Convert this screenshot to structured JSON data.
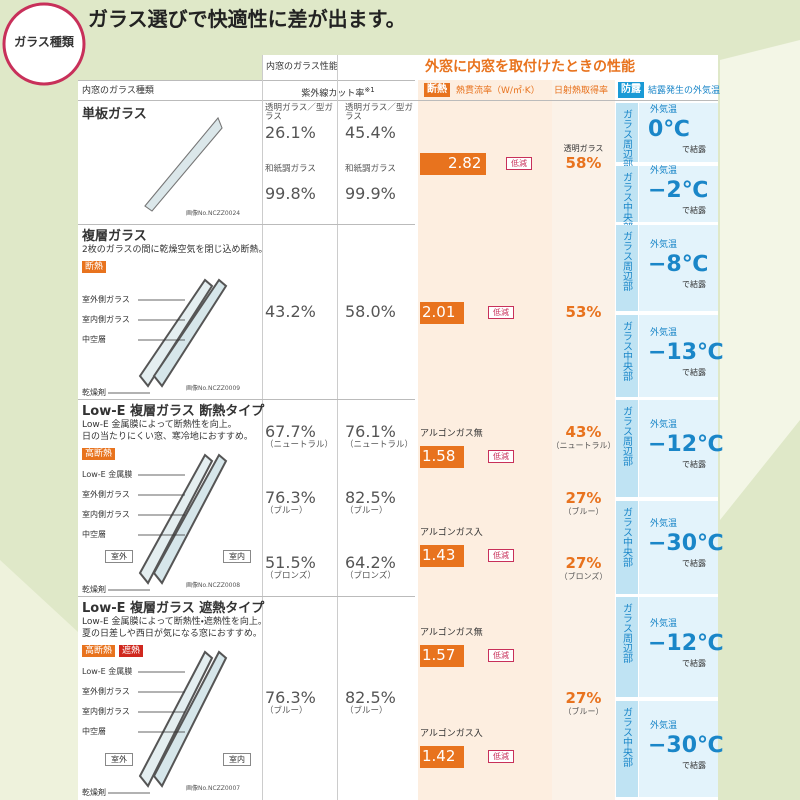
{
  "header": {
    "badge": "ガラス種類",
    "title": "ガラス選びで快適性に差が出ます。"
  },
  "table": {
    "head": {
      "type": "内窓のガラス種類",
      "performance": "内窓のガラス性能",
      "uv": "紫外線カット率",
      "uv_note": "※1",
      "outer": "外窓に内窓を取付けたときの性能",
      "insulation_badge": "断熱",
      "u_value": "熱貫流率（W/㎡·K）",
      "shgc": "日射熱取得率",
      "dew_badge": "防露",
      "dew": "結露発生の外気温"
    },
    "rows": [
      {
        "name": "単板ガラス",
        "desc": [],
        "tags": [],
        "parts": [],
        "sides": [],
        "image_no": "画像No.NCZZ0024",
        "uv": [
          [
            {
              "caption": "透明ガラス／型ガラス",
              "value": "26.1%"
            },
            {
              "caption": "透明ガラス／型ガラス",
              "value": "45.4%"
            }
          ],
          [
            {
              "caption": "和紙調ガラス",
              "value": "99.8%"
            },
            {
              "caption": "和紙調ガラス",
              "value": "99.9%"
            }
          ]
        ],
        "heat": [
          {
            "value": "2.82",
            "label": "低減"
          }
        ],
        "shgc": [
          {
            "caption": "透明ガラス",
            "value": "58%"
          }
        ],
        "dew": [
          {
            "part": "ガラス周辺部",
            "label": "外気温",
            "temp": "0℃",
            "suffix": "で結露"
          },
          {
            "part": "ガラス中央部",
            "label": "外気温",
            "temp": "−2℃",
            "suffix": "で結露"
          }
        ]
      },
      {
        "name": "複層ガラス",
        "desc": [
          "2枚のガラスの間に乾燥空気を閉じ込め断熱。"
        ],
        "tags": [
          "断熱"
        ],
        "parts": [
          "室外側ガラス",
          "室内側ガラス",
          "中空層",
          "乾燥剤"
        ],
        "sides": [],
        "image_no": "画像No.NCZZ0009",
        "uv": [
          [
            {
              "value": "43.2%"
            },
            {
              "value": "58.0%"
            }
          ]
        ],
        "heat": [
          {
            "value": "2.01",
            "label": "低減"
          }
        ],
        "shgc": [
          {
            "value": "53%"
          }
        ],
        "dew": [
          {
            "part": "ガラス周辺部",
            "label": "外気温",
            "temp": "−8℃",
            "suffix": "で結露"
          },
          {
            "part": "ガラス中央部",
            "label": "外気温",
            "temp": "−13℃",
            "suffix": "で結露"
          }
        ]
      },
      {
        "name": "Low-E 複層ガラス 断熱タイプ",
        "desc": [
          "Low-E 金属膜によって断熱性を向上。",
          "日の当たりにくい窓、寒冷地におすすめ。"
        ],
        "tags": [
          "高断熱"
        ],
        "parts": [
          "Low-E 金属膜",
          "室外側ガラス",
          "室内側ガラス",
          "中空層",
          "乾燥剤"
        ],
        "sides": [
          "室外",
          "室内"
        ],
        "image_no": "画像No.NCZZ0008",
        "uv": [
          [
            {
              "value": "67.7%",
              "note": "（ニュートラル）"
            },
            {
              "value": "76.1%",
              "note": "（ニュートラル）"
            }
          ],
          [
            {
              "value": "76.3%",
              "note": "（ブルー）"
            },
            {
              "value": "82.5%",
              "note": "（ブルー）"
            }
          ],
          [
            {
              "value": "51.5%",
              "note": "（ブロンズ）"
            },
            {
              "value": "64.2%",
              "note": "（ブロンズ）"
            }
          ]
        ],
        "heat": [
          {
            "caption": "アルゴンガス無",
            "value": "1.58",
            "label": "低減"
          },
          {
            "caption": "アルゴンガス入",
            "value": "1.43",
            "label": "低減"
          }
        ],
        "shgc": [
          {
            "value": "43%",
            "note": "（ニュートラル）"
          },
          {
            "value": "27%",
            "note": "（ブルー）"
          },
          {
            "value": "27%",
            "note": "（ブロンズ）"
          }
        ],
        "dew": [
          {
            "part": "ガラス周辺部",
            "label": "外気温",
            "temp": "−12℃",
            "suffix": "で結露"
          },
          {
            "part": "ガラス中央部",
            "label": "外気温",
            "temp": "−30℃",
            "suffix": "で結露"
          }
        ]
      },
      {
        "name": "Low-E 複層ガラス 遮熱タイプ",
        "desc": [
          "Low-E 金属膜によって断熱性・遮熱性を向上。",
          "夏の日差しや西日が気になる窓におすすめ。"
        ],
        "tags": [
          "高断熱",
          "遮熱"
        ],
        "parts": [
          "Low-E 金属膜",
          "室外側ガラス",
          "室内側ガラス",
          "中空層",
          "乾燥剤"
        ],
        "sides": [
          "室外",
          "室内"
        ],
        "image_no": "画像No.NCZZ0007",
        "uv": [
          [
            {
              "value": "76.3%",
              "note": "（ブルー）"
            },
            {
              "value": "82.5%",
              "note": "（ブルー）"
            }
          ]
        ],
        "heat": [
          {
            "caption": "アルゴンガス無",
            "value": "1.57",
            "label": "低減"
          },
          {
            "caption": "アルゴンガス入",
            "value": "1.42",
            "label": "低減"
          }
        ],
        "shgc": [
          {
            "value": "27%",
            "note": "（ブルー）"
          }
        ],
        "dew": [
          {
            "part": "ガラス周辺部",
            "label": "外気温",
            "temp": "−12℃",
            "suffix": "で結露"
          },
          {
            "part": "ガラス中央部",
            "label": "外気温",
            "temp": "−30℃",
            "suffix": "で結露"
          }
        ]
      }
    ]
  }
}
